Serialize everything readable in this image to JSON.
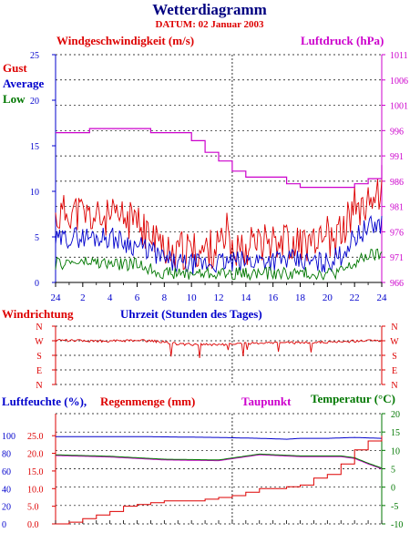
{
  "header": {
    "title": "Wetterdiagramm",
    "subtitle": "DATUM: 02 Januar 2003"
  },
  "colors": {
    "red": "#dd0000",
    "blue": "#0000cc",
    "green": "#007700",
    "magenta": "#cc00cc",
    "black": "#000000"
  },
  "chart_data": [
    {
      "type": "line",
      "title": "Windgeschwindigkeit (m/s)",
      "title_right": "Luftdruck (hPa)",
      "ylim": [
        0,
        25
      ],
      "yticks": [
        "0",
        "5",
        "10",
        "15",
        "20",
        "25"
      ],
      "y2lim": [
        966,
        1011
      ],
      "y2ticks": [
        "966",
        "971",
        "976",
        "981",
        "986",
        "991",
        "996",
        "1001",
        "1006",
        "1011"
      ],
      "xticks": [
        "24",
        "2",
        "4",
        "6",
        "8",
        "10",
        "12",
        "14",
        "16",
        "18",
        "20",
        "22",
        "24"
      ],
      "series": [
        {
          "name": "Gust",
          "color": "#dd0000",
          "x": [
            0,
            1,
            2,
            3,
            4,
            5,
            6,
            7,
            8,
            9,
            10,
            11,
            12,
            13,
            14,
            15,
            16,
            17,
            18,
            19,
            20,
            21,
            22,
            23,
            24
          ],
          "values": [
            7,
            8,
            7.5,
            7,
            7,
            7,
            6.5,
            5,
            4,
            3.5,
            3.5,
            3.5,
            4,
            4,
            4,
            4.5,
            5,
            4.5,
            4.5,
            4,
            4,
            5.5,
            8,
            9,
            10
          ]
        },
        {
          "name": "Average",
          "color": "#0000cc",
          "x": [
            0,
            1,
            2,
            3,
            4,
            5,
            6,
            7,
            8,
            9,
            10,
            11,
            12,
            13,
            14,
            15,
            16,
            17,
            18,
            19,
            20,
            21,
            22,
            23,
            24
          ],
          "values": [
            4.5,
            5,
            5,
            5,
            5,
            4.5,
            4,
            3.5,
            2.5,
            2,
            2,
            2,
            2.2,
            2.2,
            2.3,
            2.5,
            2.5,
            2.5,
            2.3,
            2.2,
            2.2,
            3,
            5,
            6,
            6.5
          ]
        },
        {
          "name": "Low",
          "color": "#007700",
          "x": [
            0,
            1,
            2,
            3,
            4,
            5,
            6,
            7,
            8,
            9,
            10,
            11,
            12,
            13,
            14,
            15,
            16,
            17,
            18,
            19,
            20,
            21,
            22,
            23,
            24
          ],
          "values": [
            2,
            2.2,
            2.2,
            2.2,
            2,
            2,
            2,
            1.5,
            1,
            1,
            1,
            1,
            1,
            1,
            1,
            1,
            1,
            1,
            1,
            1,
            1,
            1.2,
            2,
            3,
            3
          ]
        },
        {
          "name": "Luftdruck",
          "axis": "right",
          "color": "#cc00cc",
          "x": [
            0,
            1,
            2,
            2.5,
            3,
            4,
            5,
            6,
            7,
            8,
            9,
            10,
            11,
            12,
            13,
            14,
            15,
            16,
            17,
            18,
            19,
            20,
            21,
            22,
            23,
            24
          ],
          "values": [
            995.6,
            995.6,
            995.6,
            996.4,
            996.4,
            996.4,
            996.4,
            996.4,
            995.6,
            995.6,
            995.6,
            994,
            991.7,
            990,
            988,
            986.8,
            986.8,
            986.8,
            985.5,
            984.8,
            984.8,
            984.8,
            984.8,
            985.5,
            986.5,
            989.2
          ]
        }
      ]
    },
    {
      "type": "line",
      "title": "Windrichtung",
      "xlabel": "Uhrzeit (Stunden des Tages)",
      "yticks": [
        "N",
        "W",
        "S",
        "E",
        "N"
      ],
      "series": [
        {
          "color": "#dd0000",
          "x": [
            0,
            1,
            2,
            3,
            4,
            5,
            6,
            7,
            8,
            9,
            10,
            11,
            12,
            13,
            14,
            15,
            16,
            17,
            18,
            19,
            20,
            21,
            22,
            23,
            24
          ],
          "values": [
            270,
            272,
            270,
            270,
            268,
            270,
            270,
            268,
            262,
            250,
            248,
            248,
            246,
            250,
            252,
            256,
            258,
            258,
            258,
            260,
            262,
            264,
            268,
            272,
            270
          ]
        }
      ]
    },
    {
      "type": "line",
      "title_parts": [
        "Luftfeuchte (%),",
        "Regenmenge (mm)",
        "Taupunkt",
        "Temperatur (°C)"
      ],
      "yticks_humidity": [
        "0",
        "20",
        "40",
        "60",
        "80",
        "100"
      ],
      "yticks_rain": [
        "0.0",
        "5.0",
        "10.0",
        "15.0",
        "20.0",
        "25.0"
      ],
      "yticks_temp": [
        "-10",
        "-5",
        "0",
        "5",
        "10",
        "15",
        "20"
      ],
      "series": [
        {
          "name": "Luftfeuchte",
          "color": "#0000cc",
          "x": [
            0,
            6,
            12,
            15,
            17,
            18,
            20,
            22,
            24
          ],
          "values": [
            99,
            99,
            98,
            97,
            96,
            97,
            97,
            98,
            97
          ]
        },
        {
          "name": "Taupunkt",
          "color": "#cc00cc",
          "x": [
            0,
            4,
            8,
            12,
            15,
            18,
            20,
            21,
            22,
            23,
            24
          ],
          "values": [
            8.6,
            8.2,
            7.4,
            7.2,
            8.8,
            8.3,
            8.3,
            8.3,
            7.8,
            6.3,
            5.0
          ]
        },
        {
          "name": "Temperatur",
          "color": "#007700",
          "x": [
            0,
            4,
            8,
            12,
            15,
            18,
            20,
            21,
            22,
            23,
            24
          ],
          "values": [
            8.8,
            8.4,
            7.6,
            7.4,
            9.0,
            8.5,
            8.5,
            8.5,
            8.0,
            6.5,
            5.2
          ]
        },
        {
          "name": "Regenmenge",
          "color": "#dd0000",
          "x": [
            0,
            1,
            2,
            3,
            4,
            5,
            6,
            7,
            8,
            9,
            10,
            11,
            12,
            13,
            14,
            15,
            16,
            17,
            18,
            19,
            20,
            21,
            22,
            23,
            24
          ],
          "values": [
            0,
            0.5,
            1.5,
            2.5,
            3.5,
            5,
            5.5,
            6,
            6.5,
            6.5,
            6.5,
            7,
            7.5,
            8,
            9,
            10,
            10,
            10.5,
            11,
            13,
            14,
            17,
            21,
            23.5,
            25
          ]
        }
      ]
    }
  ]
}
